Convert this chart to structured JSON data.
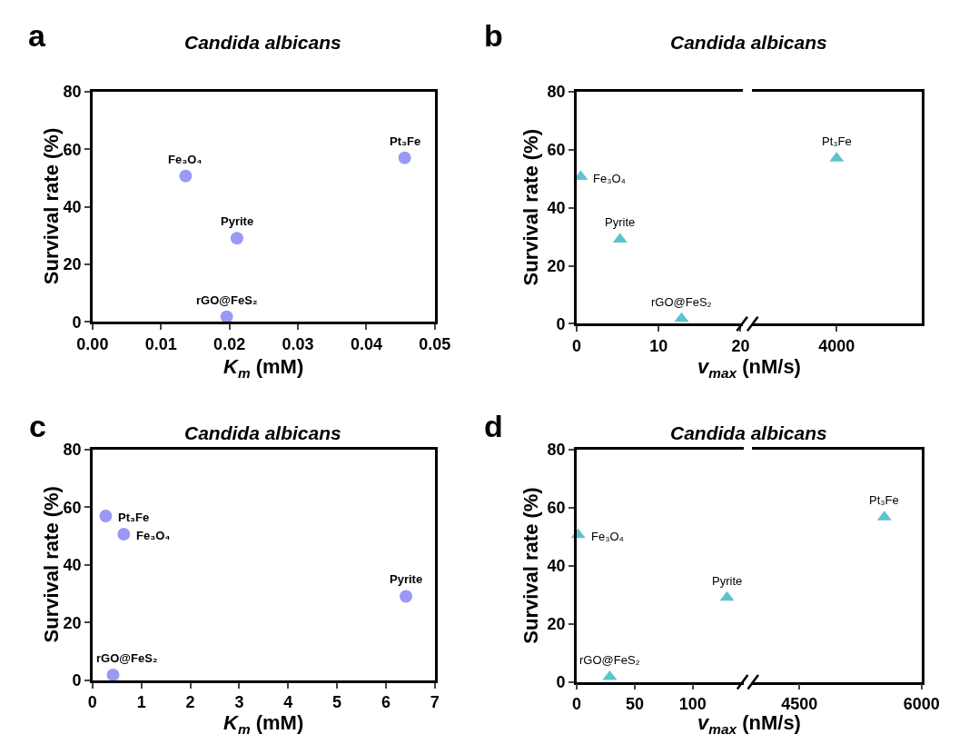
{
  "chart_data": [
    {
      "type": "scatter",
      "title": "Candida albicans",
      "xlabel": "K$_{m}$ (mM)",
      "ylabel": "Survival rate (%)",
      "marker": "circle",
      "xlim": [
        0,
        0.05
      ],
      "xticks": [
        {
          "value": 0,
          "label": "0.00"
        },
        0.01,
        0.02,
        0.03,
        0.04,
        0.05
      ],
      "ylim": [
        0,
        80
      ],
      "yticks": [
        0,
        20,
        40,
        60,
        80
      ],
      "series": [
        {
          "color": "#9a9af6",
          "x": [
            0.0136,
            0.0211,
            0.0196,
            0.0456
          ],
          "values": [
            50.7,
            29.1,
            1.8,
            57.0
          ]
        }
      ],
      "annotations": [
        "a",
        {
          "text": "Fe₃O₄",
          "x": 0.0136,
          "y": 50.7
        },
        {
          "text": "Pyrite",
          "x": 0.0211,
          "y": 29.1
        },
        {
          "text": "rGO@FeS₂",
          "x": 0.0196,
          "y": 1.8
        },
        {
          "text": "Pt₃Fe",
          "x": 0.0456,
          "y": 57.0
        }
      ]
    },
    {
      "type": "scatter",
      "title": "Candida albicans",
      "xlabel": "v$_{max}$ (nM/s)",
      "ylabel": "Survival rate (%)",
      "marker": "triangle",
      "xlim": [
        0,
        20.3
      ],
      "xticks": [
        0,
        10,
        20
      ],
      "ylim": [
        0,
        80
      ],
      "yticks": [
        0,
        20,
        40,
        60,
        80
      ],
      "series": [
        {
          "color": "#5cc3cd",
          "x": [
            0.5,
            5.3,
            12.8
          ],
          "values": [
            50.7,
            29.1,
            1.8
          ]
        }
      ],
      "annotations": [
        "b",
        {
          "text": "Fe₃O₄",
          "x": 0.5,
          "y": 50.7
        },
        {
          "text": "Pyrite",
          "x": 5.3,
          "y": 29.1
        },
        {
          "text": "rGO@FeS₂",
          "x": 12.8,
          "y": 1.8
        }
      ]
    },
    {
      "type": "scatter",
      "marker": "triangle",
      "tick_labels": "x",
      "categories": [
        "4000"
      ],
      "ylim": [
        0,
        80
      ],
      "yticks": [
        0,
        20,
        40,
        60,
        80
      ],
      "series": [
        {
          "color": "#5cc3cd",
          "values": [
            57.0
          ]
        }
      ],
      "annotations": [
        {
          "text": "Pt₃Fe",
          "x": "4000",
          "y": 57.0
        }
      ]
    },
    {
      "type": "scatter",
      "title": "Candida albicans",
      "xlabel": "K$_{m}$ (mM)",
      "ylabel": "Survival rate (%)",
      "marker": "circle",
      "xlim": [
        0,
        7
      ],
      "xticks": [
        0,
        1,
        2,
        3,
        4,
        5,
        6,
        7
      ],
      "ylim": [
        0,
        80
      ],
      "yticks": [
        0,
        20,
        40,
        60,
        80
      ],
      "series": [
        {
          "color": "#9a9af6",
          "x": [
            0.27,
            0.64,
            6.41,
            0.42
          ],
          "values": [
            57.0,
            50.7,
            29.1,
            1.8
          ]
        }
      ],
      "annotations": [
        "c",
        {
          "text": "Pt₃Fe",
          "x": 0.27,
          "y": 57.0
        },
        {
          "text": "Fe₃O₄",
          "x": 0.64,
          "y": 50.7
        },
        {
          "text": "Pyrite",
          "x": 6.41,
          "y": 29.1
        },
        {
          "text": "rGO@FeS₂",
          "x": 0.42,
          "y": 1.8
        }
      ]
    },
    {
      "type": "scatter",
      "title": "Candida albicans",
      "xlabel": "v$_{max}$ (nM/s)",
      "ylabel": "Survival rate (%)",
      "marker": "triangle",
      "xlim": [
        0,
        144
      ],
      "xticks": [
        0,
        50,
        100
      ],
      "ylim": [
        0,
        80
      ],
      "yticks": [
        0,
        20,
        40,
        60,
        80
      ],
      "series": [
        {
          "color": "#5cc3cd",
          "x": [
            1.3,
            129.5,
            28.5
          ],
          "values": [
            50.7,
            29.1,
            1.8
          ]
        }
      ],
      "annotations": [
        "d",
        {
          "text": "Fe₃O₄",
          "x": 1.3,
          "y": 50.7
        },
        {
          "text": "Pyrite",
          "x": 129.5,
          "y": 29.1
        },
        {
          "text": "rGO@FeS₂",
          "x": 28.5,
          "y": 1.8
        }
      ]
    },
    {
      "type": "scatter",
      "marker": "triangle",
      "tick_labels": "x",
      "xlim": [
        3915,
        6000
      ],
      "xticks": [
        4500,
        6000
      ],
      "ylim": [
        0,
        80
      ],
      "yticks": [
        0,
        20,
        40,
        60,
        80
      ],
      "series": [
        {
          "color": "#5cc3cd",
          "x": [
            5543
          ],
          "values": [
            56.8
          ]
        }
      ],
      "annotations": [
        {
          "text": "Pt₃Fe",
          "x": 5543,
          "y": 56.8
        }
      ]
    }
  ]
}
